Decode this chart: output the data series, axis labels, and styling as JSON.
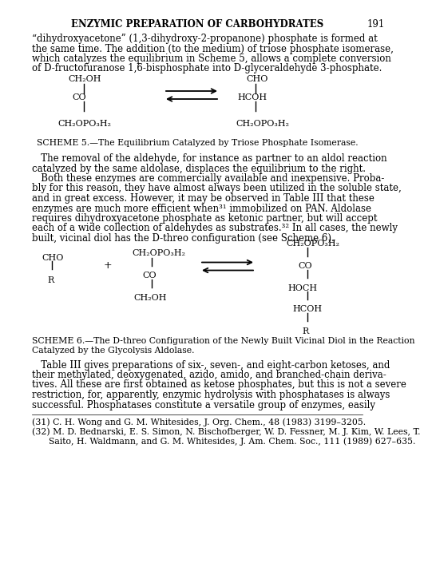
{
  "title": "ENZYMIC PREPARATION OF CARBOHYDRATES",
  "page_num": "191",
  "bg_color": "#ffffff",
  "text_color": "#000000",
  "para1_lines": [
    "“dihydroxyacetone” (1,3-dihydroxy-2-propanone) phosphate is formed at",
    "the same time. The addition (to the medium) of triose phosphate isomerase,",
    "which catalyzes the equilibrium in Scheme 5, allows a complete conversion",
    "of D-fructofuranose 1,6-bisphosphate into D-glyceraldehyde 3-phosphate."
  ],
  "scheme5_caption": "SCHEME 5.—The Equilibrium Catalyzed by Triose Phosphate Isomerase.",
  "para2_lines": [
    "   The removal of the aldehyde, for instance as partner to an aldol reaction",
    "catalyzed by the same aldolase, displaces the equilibrium to the right.",
    "   Both these enzymes are commercially available and inexpensive. Proba-",
    "bly for this reason, they have almost always been utilized in the soluble state,",
    "and in great excess. However, it may be observed in Table III that these",
    "enzymes are much more efficient when³¹ immobilized on PAN. Aldolase",
    "requires dihydroxyacetone phosphate as ketonic partner, but will accept",
    "each of a wide collection of aldehydes as substrates.³² In all cases, the newly",
    "built, vicinal diol has the D-threo configuration (see Scheme 6)."
  ],
  "scheme6_caption_line1": "SCHEME 6.—The D-threo Configuration of the Newly Built Vicinal Diol in the Reaction",
  "scheme6_caption_line2": "Catalyzed by the Glycolysis Aldolase.",
  "para3_lines": [
    "   Table III gives preparations of six-, seven-, and eight-carbon ketoses, and",
    "their methylated, deoxygenated, azido, amido, and branched-chain deriva-",
    "tives. All these are first obtained as ketose phosphates, but this is not a severe",
    "restriction, for, apparently, enzymic hydrolysis with phosphatases is always",
    "successful. Phosphatases constitute a versatile group of enzymes, easily"
  ],
  "footnote1": "(31) C. H. Wong and G. M. Whitesides, J. Org. Chem., 48 (1983) 3199–3205.",
  "footnote2a": "(32) M. D. Bednarski, E. S. Simon, N. Bischofberger, W. D. Fessner, M. J. Kim, W. Lees, T.",
  "footnote2b": "      Saito, H. Waldmann, and G. M. Whitesides, J. Am. Chem. Soc., 111 (1989) 627–635."
}
